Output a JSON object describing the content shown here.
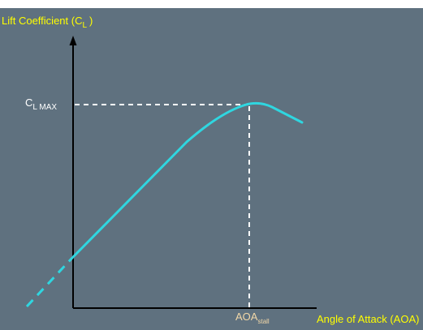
{
  "colors": {
    "panel": "#5f717f",
    "axis": "#000000",
    "curve": "#2fd6e0",
    "dash": "#ffffff",
    "y_label": "#ffff00",
    "x_label": "#ffff00",
    "cl_max_label": "#ffffff",
    "aoa_stall_label": "#f2d8a8"
  },
  "labels": {
    "y_axis_main": "Lift Coefficient (C",
    "y_axis_sub": "L",
    "y_axis_close": ")",
    "x_axis": "Angle of Attack (AOA)",
    "cl_max_main": "C",
    "cl_max_sub": "L MAX",
    "aoa_main": "AOA",
    "aoa_sub": "stall"
  },
  "icons": {
    "y_axis_arrow": "arrow-up-icon"
  }
}
